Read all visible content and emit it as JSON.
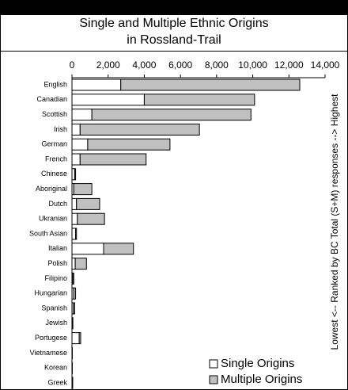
{
  "chart_data": {
    "type": "stacked_barh",
    "title": "Single and Multiple Ethnic Origins in Rossland-Trail",
    "side_label": "Lowest <-- Ranked by BC Total (S+M) responses --> Highest",
    "categories": [
      "English",
      "Canadian",
      "Scottish",
      "Irish",
      "German",
      "French",
      "Chinese",
      "Aboriginal",
      "Dutch",
      "Ukranian",
      "South Asian",
      "Italian",
      "Polish",
      "Filipino",
      "Hungarian",
      "Spanish",
      "Jewish",
      "Portugese",
      "Vietnamese",
      "Korean",
      "Greek"
    ],
    "series": [
      {
        "name": "Single Origins",
        "color": "#ffffff",
        "values": [
          2700,
          4000,
          1100,
          450,
          870,
          450,
          150,
          100,
          250,
          300,
          200,
          1750,
          180,
          50,
          100,
          80,
          30,
          400,
          20,
          20,
          30
        ]
      },
      {
        "name": "Multiple Origins",
        "color": "#c0c0c0",
        "values": [
          9900,
          6100,
          8800,
          6600,
          4550,
          3650,
          50,
          1000,
          1280,
          1500,
          50,
          1650,
          620,
          50,
          100,
          70,
          20,
          80,
          0,
          0,
          10
        ]
      }
    ],
    "xlim": [
      0,
      14000
    ],
    "xticks": [
      0,
      {
        "value": 2000,
        "label": "2,000"
      },
      {
        "value": 4000,
        "label": "4,000"
      },
      {
        "value": 6000,
        "label": "6,000"
      },
      {
        "value": 8000,
        "label": "8,000"
      },
      {
        "value": 10000,
        "label": "10,000"
      },
      {
        "value": 12000,
        "label": "12,000"
      },
      {
        "value": 14000,
        "label": "14,000"
      }
    ],
    "legend": "lower-right"
  }
}
